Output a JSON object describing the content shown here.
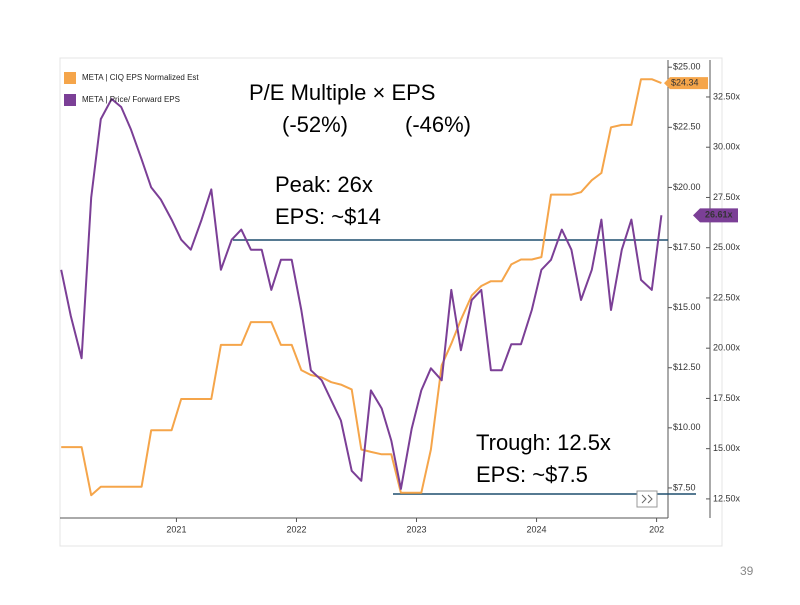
{
  "chart_data": {
    "type": "line",
    "annotations": [
      "P/E Multiple × EPS",
      "(-52%)",
      "(-46%)",
      "Peak: 26x",
      "EPS: ~$14",
      "Trough: 12.5x",
      "EPS: ~$7.5"
    ],
    "page_number": "39",
    "x": [
      2020.04,
      2020.12,
      2020.21,
      2020.29,
      2020.37,
      2020.46,
      2020.54,
      2020.62,
      2020.71,
      2020.79,
      2020.87,
      2020.96,
      2021.04,
      2021.12,
      2021.21,
      2021.29,
      2021.37,
      2021.46,
      2021.54,
      2021.62,
      2021.71,
      2021.79,
      2021.87,
      2021.96,
      2022.04,
      2022.12,
      2022.21,
      2022.29,
      2022.37,
      2022.46,
      2022.54,
      2022.62,
      2022.71,
      2022.79,
      2022.87,
      2022.96,
      2023.04,
      2023.12,
      2023.21,
      2023.29,
      2023.37,
      2023.46,
      2023.54,
      2023.62,
      2023.71,
      2023.79,
      2023.87,
      2023.96,
      2024.04,
      2024.12,
      2024.21,
      2024.29,
      2024.37,
      2024.46,
      2024.54,
      2024.62,
      2024.71,
      2024.79,
      2024.87,
      2024.96,
      2025.04
    ],
    "series": [
      {
        "name": "META | CIQ EPS Normalized Est",
        "color": "#f5a54a",
        "end_label": "$24.34",
        "values": [
          9.2,
          9.2,
          9.2,
          7.2,
          7.55,
          7.55,
          7.55,
          7.55,
          7.55,
          9.9,
          9.9,
          9.9,
          11.2,
          11.2,
          11.2,
          11.2,
          13.45,
          13.45,
          13.45,
          14.4,
          14.4,
          14.4,
          13.45,
          13.45,
          12.4,
          12.2,
          12.1,
          11.9,
          11.8,
          11.6,
          9.1,
          9,
          8.9,
          8.9,
          7.3,
          7.3,
          7.3,
          9.1,
          12.6,
          13.5,
          14.5,
          15.5,
          15.9,
          16.1,
          16.1,
          16.8,
          17,
          17,
          17.1,
          19.7,
          19.7,
          19.7,
          19.8,
          20.3,
          20.6,
          22.5,
          22.6,
          22.6,
          24.5,
          24.5,
          24.34
        ]
      },
      {
        "name": "META | Price/ Forward EPS",
        "color": "#7b3f96",
        "axis": "y2",
        "end_label": "26.61x",
        "values": [
          23.9,
          21.6,
          19.5,
          27.5,
          31.4,
          32.4,
          32,
          30.9,
          29.4,
          28,
          27.4,
          26.4,
          25.4,
          24.9,
          26.4,
          27.9,
          23.9,
          25.4,
          25.9,
          24.9,
          24.9,
          22.9,
          24.4,
          24.4,
          21.9,
          18.9,
          18.4,
          17.4,
          16.4,
          13.9,
          13.4,
          17.9,
          17,
          15.4,
          13,
          16,
          17.9,
          19,
          18.4,
          22.9,
          19.9,
          22.4,
          22.9,
          18.9,
          18.9,
          20.2,
          20.2,
          21.9,
          23.9,
          24.4,
          25.9,
          24.9,
          22.4,
          23.9,
          26.4,
          21.9,
          24.9,
          26.4,
          23.4,
          22.9,
          26.61
        ]
      }
    ],
    "xlim": [
      2020.03,
      2025.07
    ],
    "xticks": [
      2021,
      2022,
      2023,
      2024,
      {
        "value": 2025,
        "label": "202"
      }
    ],
    "ylim": [
      6.25,
      25.3
    ],
    "yticks": [
      {
        "value": 25,
        "label": "$25.00"
      },
      {
        "value": 22.5,
        "label": "$22.50"
      },
      {
        "value": 20,
        "label": "$20.00"
      },
      {
        "value": 17.5,
        "label": "$17.50"
      },
      {
        "value": 15,
        "label": "$15.00"
      },
      {
        "value": 12.5,
        "label": "$12.50"
      },
      {
        "value": 10,
        "label": "$10.00"
      },
      {
        "value": 7.5,
        "label": "$7.50"
      }
    ],
    "y2lim": [
      11.55,
      34.34
    ],
    "y2ticks": [
      {
        "value": 32.5,
        "label": "32.50x"
      },
      {
        "value": 30,
        "label": "30.00x"
      },
      {
        "value": 27.5,
        "label": "27.50x"
      },
      {
        "value": 25,
        "label": "25.00x"
      },
      {
        "value": 22.5,
        "label": "22.50x"
      },
      {
        "value": 20,
        "label": "20.00x"
      },
      {
        "value": 17.5,
        "label": "17.50x"
      },
      {
        "value": 15,
        "label": "15.00x"
      },
      {
        "value": 12.5,
        "label": "12.50x"
      }
    ]
  }
}
